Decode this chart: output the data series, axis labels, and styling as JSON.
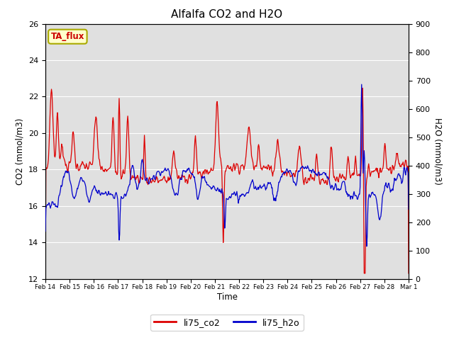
{
  "title": "Alfalfa CO2 and H2O",
  "xlabel": "Time",
  "ylabel_left": "CO2 (mmol/m3)",
  "ylabel_right": "H2O (mmol/m3)",
  "ylim_left": [
    12,
    26
  ],
  "ylim_right": [
    0,
    900
  ],
  "yticks_left": [
    12,
    14,
    16,
    18,
    20,
    22,
    24,
    26
  ],
  "yticks_right": [
    0,
    100,
    200,
    300,
    400,
    500,
    600,
    700,
    800,
    900
  ],
  "color_co2": "#dd0000",
  "color_h2o": "#0000cc",
  "legend_labels": [
    "li75_co2",
    "li75_h2o"
  ],
  "annotation_text": "TA_flux",
  "annotation_color": "#cc0000",
  "annotation_bg": "#ffffcc",
  "bg_band_color": "#e0e0e0",
  "linewidth": 0.9,
  "title_fontsize": 11,
  "figsize": [
    6.4,
    4.8
  ],
  "dpi": 100
}
